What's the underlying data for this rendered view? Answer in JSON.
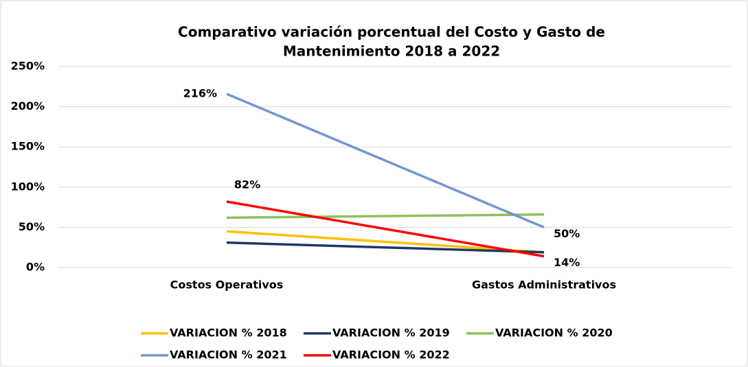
{
  "chart_data": {
    "type": "line",
    "title": [
      "Comparativo variación porcentual del Costo y Gasto de",
      "Mantenimiento 2018 a 2022"
    ],
    "categories": [
      "Costos Operativos",
      "Gastos Administrativos"
    ],
    "series": [
      {
        "name": "VARIACION % 2018",
        "color": "#ffc000",
        "values": [
          45,
          19
        ]
      },
      {
        "name": "VARIACION % 2019",
        "color": "#1f3864",
        "values": [
          31,
          19
        ]
      },
      {
        "name": "VARIACION % 2020",
        "color": "#8cc35a",
        "values": [
          62,
          66
        ]
      },
      {
        "name": "VARIACION % 2021",
        "color": "#7296d2",
        "values": [
          216,
          50
        ],
        "value_labels": [
          "216%",
          "50%"
        ]
      },
      {
        "name": "VARIACION % 2022",
        "color": "#ff0000",
        "values": [
          82,
          14
        ],
        "value_labels": [
          "82%",
          "14%"
        ]
      }
    ],
    "ylim": [
      0,
      250
    ],
    "yticks": [
      {
        "value": 0,
        "label": "0%"
      },
      {
        "value": 50,
        "label": "50%"
      },
      {
        "value": 100,
        "label": "100%"
      },
      {
        "value": 150,
        "label": "150%"
      },
      {
        "value": 200,
        "label": "200%"
      },
      {
        "value": 250,
        "label": "250%"
      }
    ],
    "grid": true,
    "legend": "bottom"
  }
}
